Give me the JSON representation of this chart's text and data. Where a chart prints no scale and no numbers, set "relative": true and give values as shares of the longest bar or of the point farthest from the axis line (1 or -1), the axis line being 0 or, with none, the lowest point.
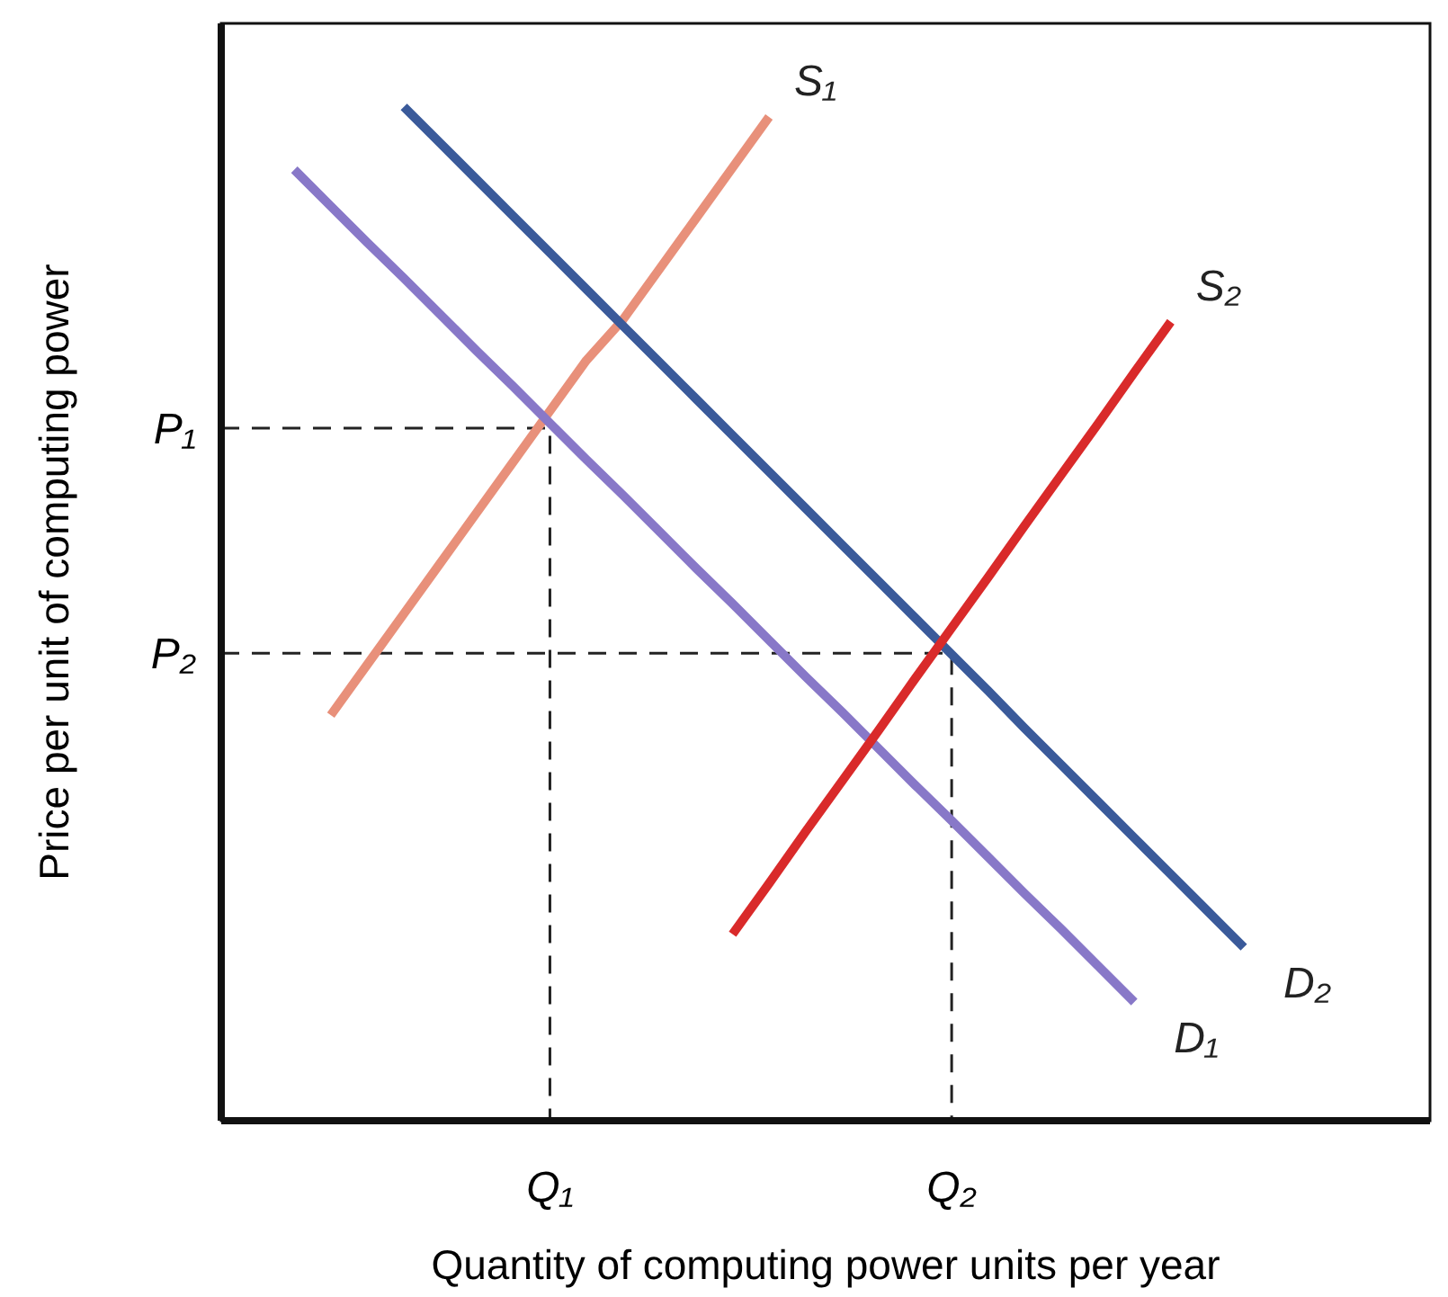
{
  "chart_data": {
    "type": "line",
    "relative": true,
    "xlabel": "Quantity of computing power units per year",
    "ylabel": "Price per unit of computing power",
    "marker": "none",
    "line_style": "solid",
    "categories": [
      null,
      null,
      null,
      null,
      null,
      null,
      null,
      null,
      null,
      "Q₁",
      null,
      null,
      null,
      null,
      null,
      null,
      null,
      null,
      null,
      null,
      "Q₂",
      null,
      null,
      null,
      null,
      null,
      null,
      null,
      null,
      null,
      null,
      null,
      null,
      null
    ],
    "ref_lines": [
      {
        "axis": "y",
        "value": 0.683,
        "label": "P₁",
        "color": "#222222",
        "line_style": "dashed"
      },
      {
        "axis": "y",
        "value": 0.461,
        "label": "P₂",
        "color": "#222222",
        "line_style": "dashed"
      }
    ],
    "series": [
      {
        "name": "S₁",
        "color": "#e8907a",
        "values": [
          null,
          null,
          null,
          0.4,
          0.45,
          0.5,
          0.55,
          0.6,
          0.65,
          0.7,
          0.75,
          0.79,
          0.84,
          0.89,
          0.94,
          0.99,
          null,
          null,
          null,
          null,
          null,
          null,
          null,
          null,
          null,
          null,
          null,
          null,
          null,
          null,
          null,
          null,
          null,
          null
        ]
      },
      {
        "name": "D₂",
        "color": "#3a5a9a",
        "values": [
          null,
          null,
          null,
          null,
          null,
          1.0,
          0.964,
          0.928,
          0.892,
          0.856,
          0.82,
          0.784,
          0.748,
          0.712,
          0.676,
          0.64,
          0.604,
          0.568,
          0.532,
          0.496,
          0.46,
          0.424,
          0.387,
          0.351,
          0.315,
          0.279,
          0.243,
          0.207,
          0.171,
          null,
          null,
          null,
          null,
          null
        ]
      },
      {
        "name": "D₁",
        "color": "#8878c8",
        "values": [
          null,
          null,
          0.938,
          0.902,
          0.866,
          0.831,
          0.795,
          0.759,
          0.724,
          0.688,
          0.652,
          0.617,
          0.581,
          0.545,
          0.51,
          0.474,
          0.438,
          0.403,
          0.367,
          0.331,
          0.296,
          0.26,
          0.224,
          0.189,
          0.153,
          0.117,
          null,
          null,
          null,
          null,
          null,
          null,
          null,
          null
        ]
      },
      {
        "name": "S₂",
        "color": "#d92a2a",
        "values": [
          null,
          null,
          null,
          null,
          null,
          null,
          null,
          null,
          null,
          null,
          null,
          null,
          null,
          null,
          0.184,
          0.234,
          0.285,
          0.335,
          0.385,
          0.436,
          0.486,
          0.536,
          0.587,
          0.637,
          0.687,
          0.738,
          0.788,
          null,
          null,
          null,
          null,
          null,
          null,
          null
        ]
      }
    ]
  }
}
